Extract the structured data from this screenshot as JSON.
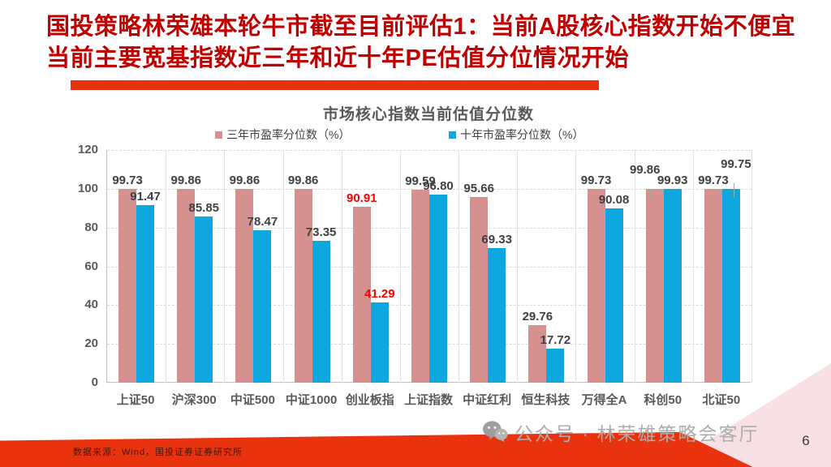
{
  "slide": {
    "title_line1": "国投策略林荣雄本轮牛市截至目前评估1：当前A股核心指数开始不便宜",
    "title_line2": "当前主要宽基指数近三年和近十年PE估值分位情况开始",
    "footer_source": "数据来源：Wind，国投证券证券研究所",
    "watermark": "公众号 · 林荣雄策略会客厅",
    "page_number": "6"
  },
  "colors": {
    "title_red": "#C00000",
    "accent_red": "#E8330E",
    "bar_pink": "#D59090",
    "bar_blue": "#0EA7E0",
    "highlight": "#FF0000",
    "corner_pink": "#F3C9CE",
    "axis_text": "#595959",
    "label_text": "#404040"
  },
  "chart_data": {
    "type": "bar",
    "title": "市场核心指数当前估值分位数",
    "categories": [
      "上证50",
      "沪深300",
      "中证500",
      "中证1000",
      "创业板指",
      "上证指数",
      "中证红利",
      "恒生科技",
      "万得全A",
      "科创50",
      "北证50"
    ],
    "series": [
      {
        "name": "三年市盈率分位数（%）",
        "color": "#D59090",
        "values": [
          99.73,
          99.86,
          99.86,
          99.86,
          90.91,
          99.59,
          95.66,
          29.76,
          99.73,
          99.86,
          99.73
        ]
      },
      {
        "name": "十年市盈率分位数（%）",
        "color": "#0EA7E0",
        "values": [
          91.47,
          85.85,
          78.47,
          73.35,
          41.29,
          96.8,
          69.33,
          17.72,
          90.08,
          99.93,
          99.75
        ]
      }
    ],
    "highlighted_category": "创业板指",
    "xlabel": "",
    "ylabel": "",
    "ylim": [
      0,
      120
    ],
    "ytick_step": 20,
    "grid": true,
    "legend_position": "top"
  }
}
